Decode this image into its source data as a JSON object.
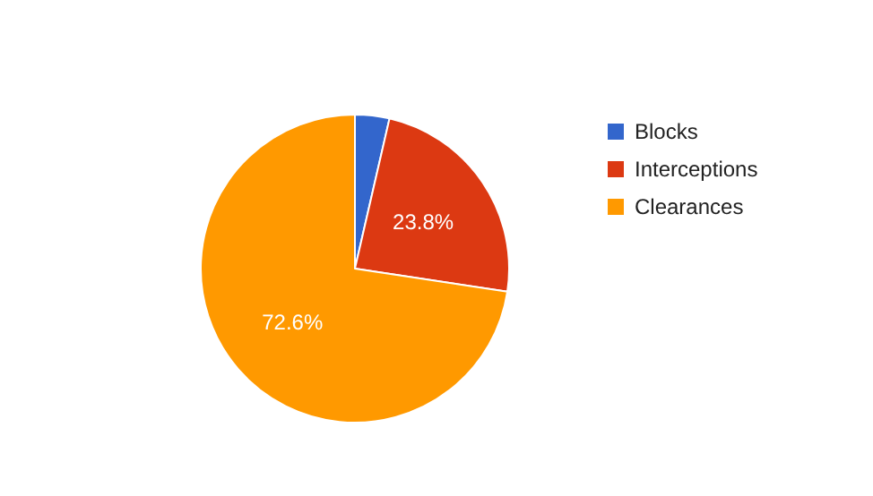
{
  "chart_data": {
    "type": "pie",
    "categories": [
      "Blocks",
      "Interceptions",
      "Clearances"
    ],
    "values": [
      3.6,
      23.8,
      72.6
    ],
    "colors": [
      "#3366cc",
      "#dc3912",
      "#ff9900"
    ],
    "value_labels": [
      null,
      "23.8%",
      "72.6%"
    ],
    "legend": "right"
  }
}
